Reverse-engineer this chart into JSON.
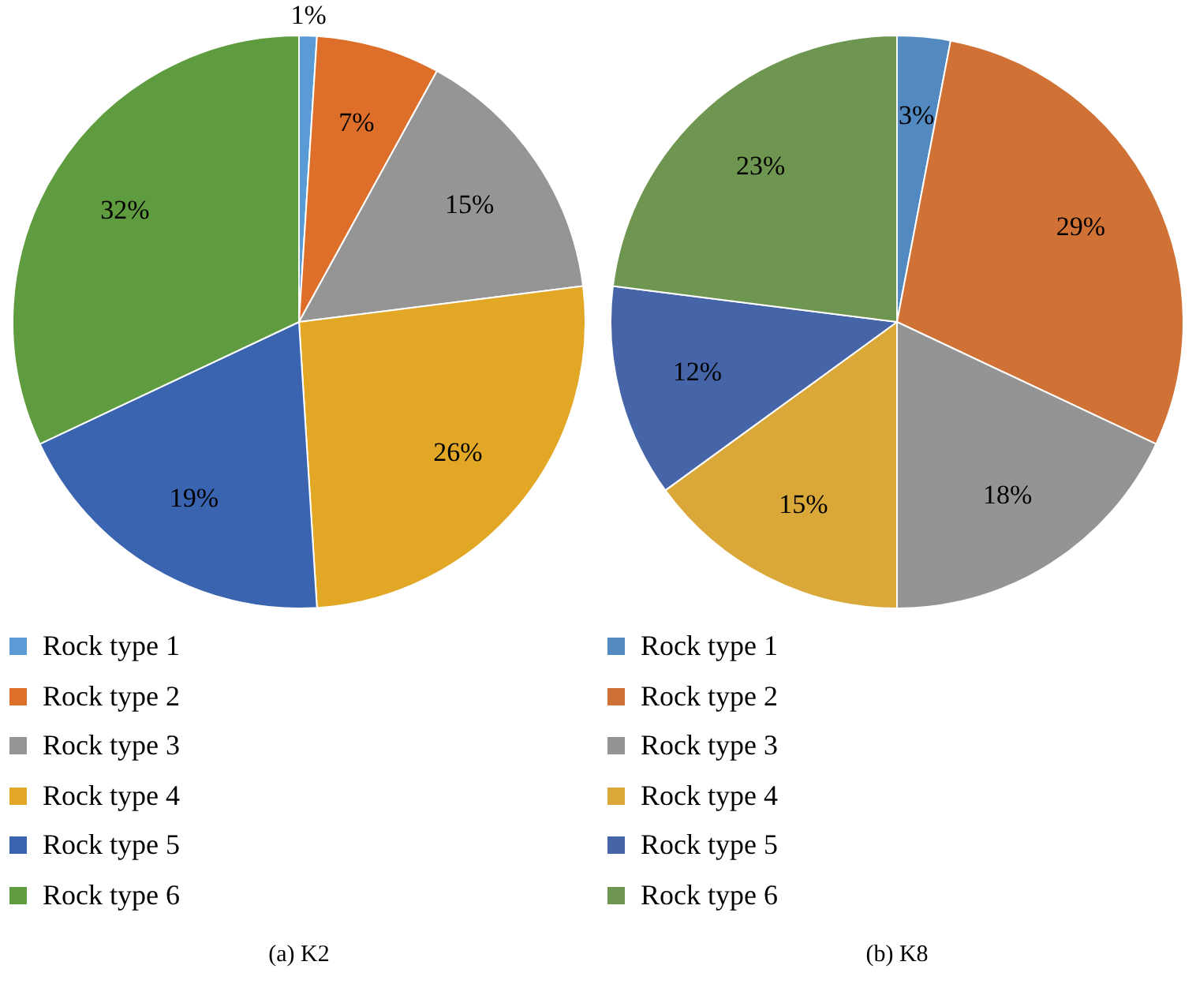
{
  "chart_data": [
    {
      "type": "pie",
      "title": "(a)  K2",
      "categories": [
        "Rock type 1",
        "Rock type 2",
        "Rock type 3",
        "Rock type 4",
        "Rock type 5",
        "Rock type 6"
      ],
      "values": [
        1,
        7,
        15,
        26,
        19,
        32
      ],
      "value_labels": [
        "1%",
        "7%",
        "15%",
        "26%",
        "19%",
        "32%"
      ],
      "colors": [
        "#5b9bd5",
        "#dd6f2a",
        "#959595",
        "#e2a825",
        "#3a64b0",
        "#5f9c3f"
      ],
      "legend": "bottom"
    },
    {
      "type": "pie",
      "title": "(b)  K8",
      "categories": [
        "Rock type 1",
        "Rock type 2",
        "Rock type 3",
        "Rock type 4",
        "Rock type 5",
        "Rock type 6"
      ],
      "values": [
        3,
        29,
        18,
        15,
        12,
        23
      ],
      "value_labels": [
        "3%",
        "29%",
        "18%",
        "15%",
        "12%",
        "23%"
      ],
      "colors": [
        "#5289c0",
        "#d07236",
        "#949494",
        "#d9a838",
        "#4565a8",
        "#6f9650"
      ],
      "legend": "bottom"
    }
  ]
}
